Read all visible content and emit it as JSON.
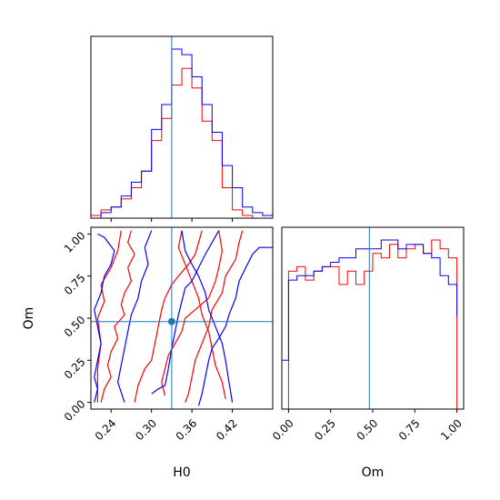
{
  "chart_data": [
    {
      "type": "histogram",
      "panel": "top-left",
      "parameter": "H0",
      "xlim": [
        0.21,
        0.48
      ],
      "truth": 0.33,
      "series": [
        {
          "color": "#ff0000",
          "edges": [
            0.21,
            0.225,
            0.24,
            0.255,
            0.27,
            0.285,
            0.3,
            0.315,
            0.33,
            0.345,
            0.36,
            0.375,
            0.39,
            0.405,
            0.42,
            0.435,
            0.45,
            0.465,
            0.48
          ],
          "counts": [
            1,
            3,
            4,
            7,
            11,
            17,
            28,
            36,
            48,
            54,
            47,
            35,
            28,
            11,
            3,
            1,
            0,
            0
          ]
        },
        {
          "color": "#0000ff",
          "edges": [
            0.21,
            0.225,
            0.24,
            0.255,
            0.27,
            0.285,
            0.3,
            0.315,
            0.33,
            0.345,
            0.36,
            0.375,
            0.39,
            0.405,
            0.42,
            0.435,
            0.45,
            0.465,
            0.48
          ],
          "counts": [
            0,
            2,
            4,
            8,
            13,
            17,
            32,
            41,
            61,
            59,
            51,
            41,
            31,
            19,
            11,
            4,
            2,
            1
          ]
        }
      ]
    },
    {
      "type": "contour",
      "panel": "bottom-left",
      "xlabel": "H0",
      "ylabel": "Om",
      "xlim": [
        0.21,
        0.48
      ],
      "ylim": [
        -0.04,
        1.04
      ],
      "xticks": [
        "0.24",
        "0.30",
        "0.36",
        "0.42"
      ],
      "yticks": [
        "0.00",
        "0.25",
        "0.50",
        "0.75",
        "1.00"
      ],
      "truth": {
        "x": 0.33,
        "y": 0.48
      },
      "series": [
        {
          "color": "#ff0000",
          "contours": [
            [
              [
                0.27,
                1.02
              ],
              [
                0.265,
                0.95
              ],
              [
                0.275,
                0.88
              ],
              [
                0.265,
                0.8
              ],
              [
                0.27,
                0.72
              ],
              [
                0.26,
                0.65
              ],
              [
                0.255,
                0.58
              ],
              [
                0.26,
                0.52
              ],
              [
                0.245,
                0.45
              ],
              [
                0.25,
                0.38
              ],
              [
                0.24,
                0.3
              ],
              [
                0.235,
                0.22
              ],
              [
                0.24,
                0.15
              ],
              [
                0.23,
                0.08
              ],
              [
                0.225,
                0.0
              ]
            ],
            [
              [
                0.22,
                0.0
              ],
              [
                0.22,
                0.2
              ],
              [
                0.225,
                0.35
              ],
              [
                0.22,
                0.5
              ],
              [
                0.23,
                0.6
              ],
              [
                0.225,
                0.7
              ],
              [
                0.24,
                0.8
              ],
              [
                0.25,
                0.9
              ],
              [
                0.255,
                1.02
              ]
            ],
            [
              [
                0.275,
                0.0
              ],
              [
                0.28,
                0.1
              ],
              [
                0.29,
                0.2
              ],
              [
                0.3,
                0.25
              ],
              [
                0.305,
                0.35
              ],
              [
                0.31,
                0.45
              ],
              [
                0.315,
                0.55
              ],
              [
                0.32,
                0.62
              ],
              [
                0.33,
                0.7
              ],
              [
                0.34,
                0.75
              ],
              [
                0.355,
                0.82
              ],
              [
                0.365,
                0.88
              ],
              [
                0.37,
                0.95
              ],
              [
                0.375,
                1.02
              ]
            ],
            [
              [
                0.435,
                1.02
              ],
              [
                0.43,
                0.95
              ],
              [
                0.425,
                0.85
              ],
              [
                0.41,
                0.75
              ],
              [
                0.405,
                0.65
              ],
              [
                0.39,
                0.55
              ],
              [
                0.385,
                0.45
              ],
              [
                0.375,
                0.35
              ],
              [
                0.365,
                0.25
              ],
              [
                0.36,
                0.15
              ],
              [
                0.355,
                0.05
              ],
              [
                0.35,
                0.0
              ]
            ],
            [
              [
                0.345,
                1.02
              ],
              [
                0.34,
                0.92
              ],
              [
                0.35,
                0.82
              ],
              [
                0.36,
                0.72
              ],
              [
                0.37,
                0.62
              ],
              [
                0.375,
                0.52
              ],
              [
                0.385,
                0.42
              ],
              [
                0.39,
                0.32
              ],
              [
                0.395,
                0.22
              ],
              [
                0.405,
                0.12
              ],
              [
                0.41,
                0.02
              ]
            ],
            [
              [
                0.4,
                1.02
              ],
              [
                0.405,
                0.9
              ],
              [
                0.4,
                0.8
              ],
              [
                0.395,
                0.72
              ],
              [
                0.385,
                0.62
              ],
              [
                0.365,
                0.55
              ],
              [
                0.35,
                0.5
              ],
              [
                0.345,
                0.42
              ],
              [
                0.335,
                0.35
              ],
              [
                0.325,
                0.28
              ],
              [
                0.32,
                0.2
              ],
              [
                0.315,
                0.12
              ],
              [
                0.32,
                0.04
              ]
            ]
          ]
        },
        {
          "color": "#0000ff",
          "contours": [
            [
              [
                0.3,
                1.02
              ],
              [
                0.29,
                0.92
              ],
              [
                0.295,
                0.82
              ],
              [
                0.285,
                0.72
              ],
              [
                0.28,
                0.62
              ],
              [
                0.27,
                0.52
              ],
              [
                0.265,
                0.42
              ],
              [
                0.26,
                0.32
              ],
              [
                0.255,
                0.22
              ],
              [
                0.25,
                0.12
              ],
              [
                0.26,
                0.0
              ]
            ],
            [
              [
                0.215,
                0.0
              ],
              [
                0.22,
                0.08
              ],
              [
                0.215,
                0.15
              ],
              [
                0.22,
                0.25
              ],
              [
                0.225,
                0.35
              ],
              [
                0.22,
                0.45
              ],
              [
                0.215,
                0.55
              ],
              [
                0.225,
                0.65
              ],
              [
                0.23,
                0.75
              ],
              [
                0.24,
                0.82
              ],
              [
                0.245,
                0.9
              ],
              [
                0.23,
                0.98
              ],
              [
                0.22,
                1.0
              ]
            ],
            [
              [
                0.3,
                0.05
              ],
              [
                0.31,
                0.08
              ],
              [
                0.32,
                0.1
              ],
              [
                0.325,
                0.2
              ],
              [
                0.33,
                0.32
              ],
              [
                0.335,
                0.42
              ],
              [
                0.34,
                0.52
              ],
              [
                0.345,
                0.6
              ],
              [
                0.35,
                0.68
              ],
              [
                0.36,
                0.72
              ],
              [
                0.37,
                0.8
              ],
              [
                0.38,
                0.88
              ],
              [
                0.39,
                0.95
              ],
              [
                0.4,
                1.02
              ]
            ],
            [
              [
                0.48,
                0.92
              ],
              [
                0.46,
                0.92
              ],
              [
                0.45,
                0.88
              ],
              [
                0.44,
                0.8
              ],
              [
                0.43,
                0.72
              ],
              [
                0.425,
                0.62
              ],
              [
                0.415,
                0.52
              ],
              [
                0.41,
                0.45
              ],
              [
                0.4,
                0.38
              ],
              [
                0.39,
                0.32
              ],
              [
                0.385,
                0.25
              ],
              [
                0.38,
                0.15
              ],
              [
                0.375,
                0.05
              ],
              [
                0.37,
                -0.02
              ]
            ],
            [
              [
                0.345,
                1.02
              ],
              [
                0.35,
                0.9
              ],
              [
                0.36,
                0.82
              ],
              [
                0.37,
                0.75
              ],
              [
                0.38,
                0.65
              ],
              [
                0.385,
                0.55
              ],
              [
                0.395,
                0.45
              ],
              [
                0.405,
                0.35
              ],
              [
                0.41,
                0.25
              ],
              [
                0.415,
                0.12
              ],
              [
                0.42,
                0.0
              ]
            ]
          ]
        }
      ]
    },
    {
      "type": "histogram",
      "panel": "bottom-right",
      "xlabel": "Om",
      "xlim": [
        -0.04,
        1.04
      ],
      "xticks": [
        "0.00",
        "0.25",
        "0.50",
        "0.75",
        "1.00"
      ],
      "truth": 0.48,
      "series": [
        {
          "color": "#ff0000",
          "edges": [
            0.0,
            0.05,
            0.1,
            0.15,
            0.2,
            0.25,
            0.3,
            0.35,
            0.4,
            0.45,
            0.5,
            0.55,
            0.6,
            0.65,
            0.7,
            0.75,
            0.8,
            0.85,
            0.9,
            0.95,
            1.0
          ],
          "counts": [
            31,
            32,
            29,
            31,
            32,
            32,
            28,
            31,
            28,
            31,
            35,
            34,
            37,
            34,
            36,
            37,
            35,
            38,
            36,
            34
          ]
        },
        {
          "color": "#0000ff",
          "edges": [
            -0.04,
            0.0,
            0.05,
            0.1,
            0.15,
            0.2,
            0.25,
            0.3,
            0.35,
            0.4,
            0.45,
            0.5,
            0.55,
            0.6,
            0.65,
            0.7,
            0.75,
            0.8,
            0.85,
            0.9,
            0.95,
            1.0
          ],
          "counts": [
            11,
            29,
            30,
            30,
            31,
            32,
            33,
            34,
            34,
            36,
            36,
            36,
            38,
            38,
            36,
            37,
            37,
            35,
            34,
            30,
            28,
            21
          ]
        }
      ]
    }
  ]
}
